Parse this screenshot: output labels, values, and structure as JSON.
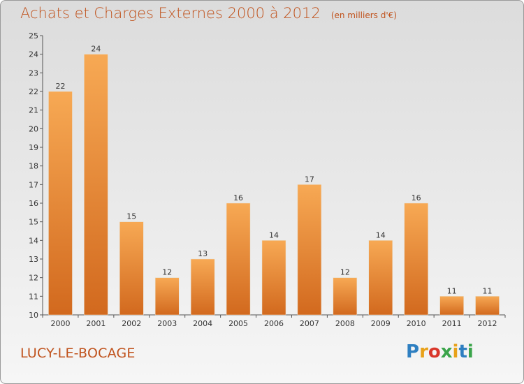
{
  "header": {
    "title": "Achats et Charges Externes 2000 à 2012",
    "subtitle": "(en milliers d'€)"
  },
  "footer": {
    "commune": "LUCY-LE-BOCAGE",
    "brand": [
      "P",
      "r",
      "o",
      "x",
      "i",
      "t",
      "i"
    ],
    "brand_colors": [
      "#2e7fc1",
      "#e8a11a",
      "#d9362a",
      "#3aa44a",
      "#e8a11a",
      "#2e7fc1",
      "#3aa44a"
    ]
  },
  "colors": {
    "bar_light": "#f7a954",
    "bar_dark": "#d2691e",
    "title": "#c0521c"
  },
  "chart_data": {
    "type": "bar",
    "title": "Achats et Charges Externes 2000 à 2012",
    "unit": "(en milliers d'€)",
    "categories": [
      "2000",
      "2001",
      "2002",
      "2003",
      "2004",
      "2005",
      "2006",
      "2007",
      "2008",
      "2009",
      "2010",
      "2011",
      "2012"
    ],
    "values": [
      22,
      24,
      15,
      12,
      13,
      16,
      14,
      17,
      12,
      14,
      16,
      11,
      11
    ],
    "value_labels": [
      "22",
      "24",
      "15",
      "12",
      "13",
      "16",
      "14",
      "17",
      "12",
      "14",
      "16",
      "11",
      "11"
    ],
    "ylim": [
      10,
      25
    ],
    "yticks": [
      "10",
      "11",
      "12",
      "13",
      "14",
      "15",
      "16",
      "17",
      "18",
      "19",
      "20",
      "21",
      "22",
      "23",
      "24",
      "25"
    ],
    "xlabel": "",
    "ylabel": "",
    "grid": false,
    "legend": "none"
  }
}
